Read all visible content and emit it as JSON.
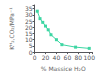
{
  "chart_data": {
    "type": "line",
    "x": [
      5,
      10,
      15,
      20,
      25,
      30,
      40,
      50,
      75,
      100
    ],
    "values": [
      33,
      27,
      24,
      21,
      18,
      14,
      10,
      6,
      4,
      3
    ],
    "color": "#3dd6a3",
    "marker": "square",
    "xlabel": "% Massice H₂O",
    "ylabel": "Kᴴ₂,CO₂/MPa⁻¹",
    "xlim": [
      0,
      105
    ],
    "ylim": [
      0,
      38
    ],
    "xticks": [
      0,
      20,
      40,
      60,
      80,
      100
    ],
    "yticks": [
      0,
      5,
      10,
      15,
      20,
      25,
      30,
      35
    ],
    "grid": false
  }
}
